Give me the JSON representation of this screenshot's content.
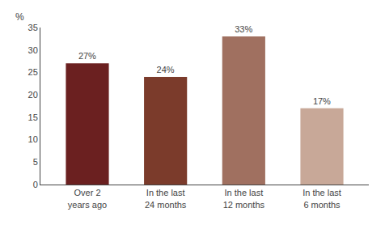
{
  "chart_data": {
    "type": "bar",
    "ylabel": "%",
    "categories": [
      "Over 2\nyears ago",
      "In the last\n24 months",
      "In the last\n12 months",
      "In the last\n6 months"
    ],
    "values": [
      27,
      24,
      33,
      17
    ],
    "value_labels": [
      "27%",
      "24%",
      "33%",
      "17%"
    ],
    "colors": [
      "#6B2020",
      "#7B3B2B",
      "#A07060",
      "#C8A898"
    ],
    "ylim": [
      0,
      35
    ],
    "yticks": [
      0,
      5,
      10,
      15,
      20,
      25,
      30,
      35
    ],
    "grid": false,
    "data_labels": true
  }
}
